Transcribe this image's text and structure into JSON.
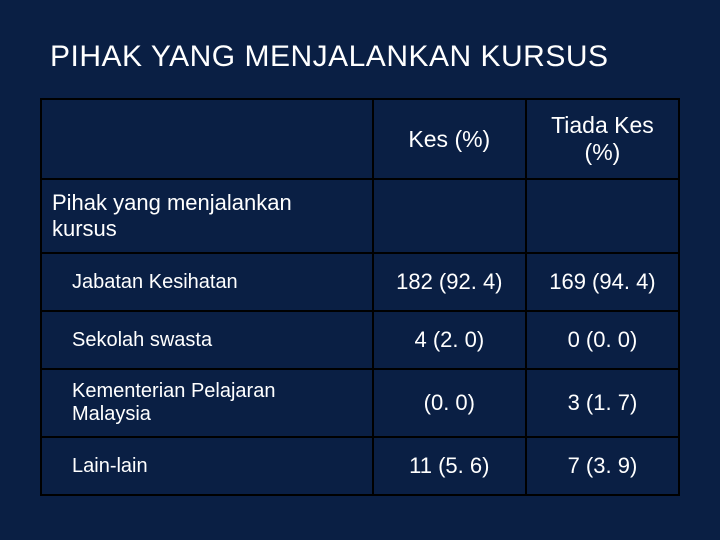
{
  "colors": {
    "background": "#0a1f44",
    "text": "#ffffff",
    "border": "#000000"
  },
  "title": "PIHAK YANG MENJALANKAN KURSUS",
  "table": {
    "headers": {
      "blank": "",
      "col1": "Kes (%)",
      "col2": "Tiada Kes (%)"
    },
    "section_label": "Pihak yang menjalankan kursus",
    "rows": [
      {
        "label": "Jabatan Kesihatan",
        "c1": "182 (92. 4)",
        "c2": "169 (94. 4)"
      },
      {
        "label": "Sekolah swasta",
        "c1": "4 (2. 0)",
        "c2": "0 (0. 0)"
      },
      {
        "label": "Kementerian Pelajaran Malaysia",
        "c1": "(0. 0)",
        "c2": "3 (1. 7)"
      },
      {
        "label": "Lain-lain",
        "c1": "11 (5. 6)",
        "c2": "7 (3. 9)"
      }
    ]
  }
}
